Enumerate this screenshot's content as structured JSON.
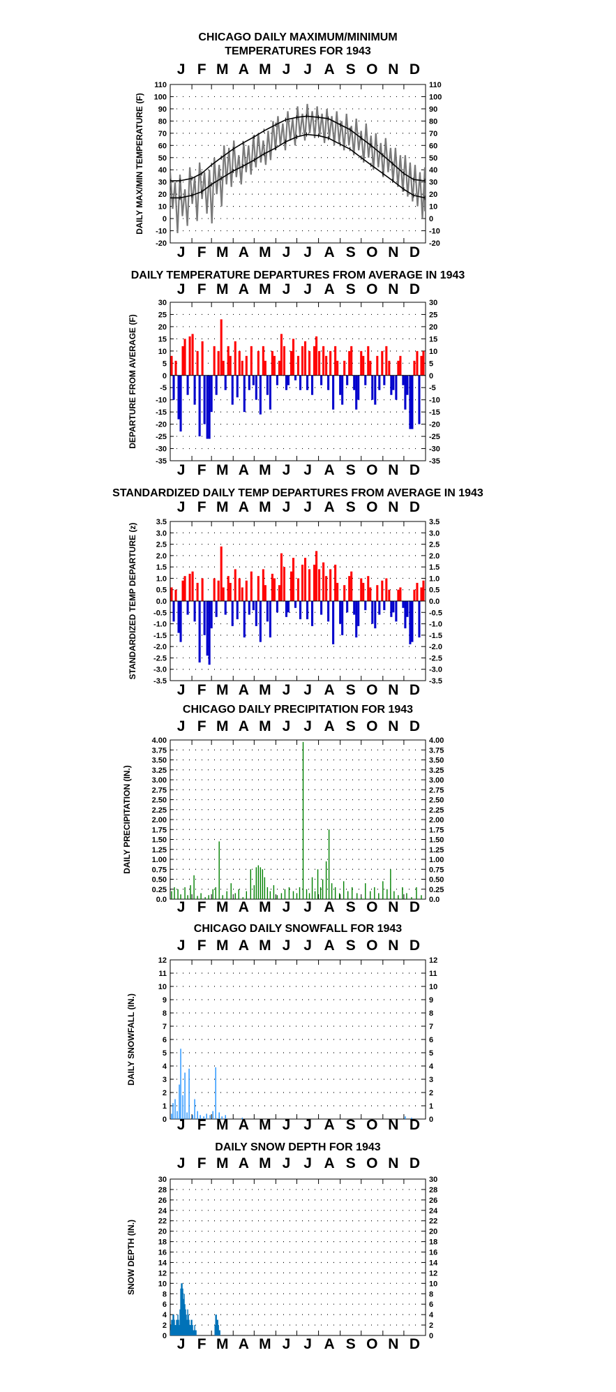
{
  "chart_data": [
    {
      "type": "line",
      "title": "CHICAGO DAILY MAXIMUM/MINIMUM TEMPERATURES FOR 1943",
      "title_lines": [
        "CHICAGO DAILY MAXIMUM/MINIMUM",
        "TEMPERATURES FOR 1943"
      ],
      "ylabel": "DAILY MAX/MIN TEMPERATURE (F)",
      "xlabel": "",
      "month_labels": [
        "J",
        "F",
        "M",
        "A",
        "M",
        "J",
        "J",
        "A",
        "S",
        "O",
        "N",
        "D"
      ],
      "ylim": [
        -20,
        110
      ],
      "yticks": [
        110,
        100,
        90,
        80,
        70,
        60,
        50,
        40,
        30,
        20,
        10,
        0,
        -10,
        -20
      ],
      "grid": true,
      "x_unit": "day of year (1 = Jan 1)",
      "colors": {
        "observed": "#7a7a7a",
        "normal": "#000000"
      },
      "series": [
        {
          "values": {
            "kind": "normal_max",
            "x": [
              1,
              15,
              32,
              46,
              60,
              74,
              91,
              105,
              121,
              135,
              152,
              166,
              182,
              196,
              213,
              227,
              244,
              258,
              274,
              288,
              305,
              319,
              335,
              349,
              365
            ],
            "y": [
              31,
              31,
              33,
              37,
              44,
              50,
              57,
              62,
              67,
              72,
              77,
              81,
              83,
              84,
              83,
              82,
              77,
              73,
              66,
              60,
              52,
              45,
              37,
              32,
              31
            ]
          }
        },
        {
          "values": {
            "kind": "normal_min",
            "x": [
              1,
              15,
              32,
              46,
              60,
              74,
              91,
              105,
              121,
              135,
              152,
              166,
              182,
              196,
              213,
              227,
              244,
              258,
              274,
              288,
              305,
              319,
              335,
              349,
              365
            ],
            "y": [
              17,
              17,
              19,
              22,
              28,
              33,
              39,
              43,
              48,
              53,
              58,
              63,
              67,
              69,
              68,
              66,
              61,
              57,
              50,
              44,
              37,
              31,
              24,
              19,
              17
            ]
          }
        },
        {
          "values": {
            "kind": "observed_envelope",
            "x": [
              1,
              8,
              15,
              22,
              29,
              36,
              43,
              50,
              57,
              64,
              71,
              78,
              85,
              92,
              99,
              106,
              113,
              120,
              127,
              134,
              141,
              148,
              155,
              162,
              169,
              176,
              183,
              190,
              197,
              204,
              211,
              218,
              225,
              232,
              239,
              246,
              253,
              260,
              267,
              274,
              281,
              288,
              295,
              302,
              309,
              316,
              323,
              330,
              337,
              344,
              351,
              358,
              365
            ],
            "high": [
              38,
              30,
              36,
              24,
              42,
              34,
              46,
              38,
              40,
              50,
              44,
              60,
              58,
              64,
              52,
              62,
              60,
              68,
              70,
              64,
              72,
              80,
              84,
              78,
              88,
              82,
              92,
              86,
              94,
              88,
              92,
              86,
              90,
              84,
              88,
              80,
              86,
              76,
              82,
              72,
              78,
              68,
              70,
              62,
              66,
              58,
              58,
              52,
              52,
              46,
              44,
              38,
              42
            ],
            "low": [
              8,
              -12,
              2,
              -6,
              12,
              -2,
              16,
              4,
              -4,
              20,
              10,
              28,
              26,
              34,
              28,
              38,
              36,
              42,
              46,
              44,
              48,
              56,
              60,
              56,
              64,
              60,
              68,
              64,
              70,
              66,
              68,
              62,
              66,
              60,
              62,
              56,
              60,
              52,
              56,
              46,
              50,
              40,
              42,
              34,
              38,
              30,
              26,
              22,
              18,
              14,
              10,
              0,
              6
            ]
          }
        }
      ]
    },
    {
      "type": "bar",
      "title": "DAILY TEMPERATURE DEPARTURES FROM AVERAGE IN 1943",
      "ylabel": "DEPARTURE FROM AVERAGE (F)",
      "xlabel": "",
      "month_labels": [
        "J",
        "F",
        "M",
        "A",
        "M",
        "J",
        "J",
        "A",
        "S",
        "O",
        "N",
        "D"
      ],
      "ylim": [
        -35,
        30
      ],
      "yticks": [
        30,
        25,
        20,
        15,
        10,
        5,
        0,
        -5,
        -10,
        -15,
        -20,
        -25,
        -30,
        -35
      ],
      "grid": true,
      "colors": {
        "positive": "#ff0000",
        "negative": "#0000cc"
      },
      "x_unit": "day of year",
      "x": [
        3,
        6,
        9,
        13,
        16,
        19,
        22,
        26,
        29,
        33,
        36,
        40,
        43,
        47,
        50,
        54,
        57,
        60,
        64,
        67,
        70,
        74,
        77,
        80,
        84,
        87,
        90,
        94,
        97,
        100,
        104,
        107,
        110,
        114,
        117,
        120,
        124,
        127,
        130,
        134,
        137,
        140,
        144,
        147,
        150,
        154,
        157,
        160,
        164,
        167,
        170,
        174,
        177,
        180,
        184,
        187,
        190,
        194,
        197,
        200,
        204,
        207,
        210,
        214,
        217,
        220,
        224,
        227,
        230,
        234,
        237,
        240,
        244,
        247,
        250,
        254,
        257,
        260,
        264,
        267,
        270,
        274,
        277,
        280,
        284,
        287,
        290,
        294,
        297,
        300,
        304,
        307,
        310,
        314,
        317,
        320,
        324,
        327,
        330,
        334,
        337,
        340,
        344,
        347,
        350,
        354,
        357,
        360,
        363
      ],
      "y": [
        8,
        -10,
        6,
        -18,
        -23,
        12,
        15,
        -8,
        16,
        17,
        -12,
        10,
        -25,
        14,
        -20,
        -26,
        -26,
        -15,
        12,
        -8,
        10,
        23,
        6,
        -6,
        12,
        8,
        -12,
        14,
        -9,
        10,
        6,
        -15,
        8,
        -6,
        12,
        -4,
        -10,
        10,
        -16,
        12,
        6,
        -8,
        -14,
        10,
        8,
        -4,
        6,
        17,
        12,
        -6,
        -4,
        10,
        15,
        -2,
        8,
        -6,
        12,
        14,
        -6,
        10,
        -8,
        12,
        16,
        10,
        -4,
        12,
        8,
        -6,
        10,
        -14,
        12,
        6,
        -8,
        -12,
        6,
        -4,
        10,
        12,
        -6,
        -14,
        -10,
        10,
        8,
        -4,
        12,
        6,
        -10,
        -12,
        8,
        -6,
        10,
        -4,
        12,
        6,
        -8,
        -6,
        -10,
        6,
        8,
        -4,
        -14,
        -8,
        -22,
        -22,
        6,
        10,
        -20,
        8,
        10
      ]
    },
    {
      "type": "bar",
      "title": "STANDARDIZED DAILY TEMP DEPARTURES FROM AVERAGE IN 1943",
      "ylabel": "STANDARDIZED TEMP DEPARTURE (z)",
      "xlabel": "",
      "month_labels": [
        "J",
        "F",
        "M",
        "A",
        "M",
        "J",
        "J",
        "A",
        "S",
        "O",
        "N",
        "D"
      ],
      "ylim": [
        -3.5,
        3.5
      ],
      "yticks": [
        "3.5",
        "3.0",
        "2.5",
        "2.0",
        "1.5",
        "1.0",
        "0.5",
        "0.0",
        "-0.5",
        "-1.0",
        "-1.5",
        "-2.0",
        "-2.5",
        "-3.0",
        "-3.5"
      ],
      "grid": true,
      "colors": {
        "positive": "#ff0000",
        "negative": "#0000cc"
      },
      "x_unit": "day of year",
      "x": [
        3,
        6,
        9,
        13,
        16,
        19,
        22,
        26,
        29,
        33,
        36,
        40,
        43,
        47,
        50,
        54,
        57,
        60,
        64,
        67,
        70,
        74,
        77,
        80,
        84,
        87,
        90,
        94,
        97,
        100,
        104,
        107,
        110,
        114,
        117,
        120,
        124,
        127,
        130,
        134,
        137,
        140,
        144,
        147,
        150,
        154,
        157,
        160,
        164,
        167,
        170,
        174,
        177,
        180,
        184,
        187,
        190,
        194,
        197,
        200,
        204,
        207,
        210,
        214,
        217,
        220,
        224,
        227,
        230,
        234,
        237,
        240,
        244,
        247,
        250,
        254,
        257,
        260,
        264,
        267,
        270,
        274,
        277,
        280,
        284,
        287,
        290,
        294,
        297,
        300,
        304,
        307,
        310,
        314,
        317,
        320,
        324,
        327,
        330,
        334,
        337,
        340,
        344,
        347,
        350,
        354,
        357,
        360,
        363
      ],
      "y": [
        0.6,
        -0.9,
        0.5,
        -1.4,
        -1.8,
        0.9,
        1.1,
        -0.6,
        1.2,
        1.3,
        -0.9,
        0.8,
        -2.7,
        1.0,
        -1.5,
        -2.4,
        -2.8,
        -1.2,
        1.0,
        -0.7,
        0.9,
        2.4,
        0.6,
        -0.6,
        1.1,
        0.8,
        -1.1,
        1.4,
        -0.8,
        1.0,
        0.6,
        -1.6,
        0.9,
        -0.6,
        1.3,
        -0.4,
        -1.1,
        1.1,
        -1.8,
        1.4,
        0.7,
        -0.9,
        -1.6,
        1.2,
        1.0,
        -0.5,
        0.7,
        2.1,
        1.5,
        -0.7,
        -0.5,
        1.3,
        1.9,
        -0.3,
        1.0,
        -0.8,
        1.6,
        1.9,
        -0.8,
        1.4,
        -1.1,
        1.6,
        2.2,
        1.4,
        -0.6,
        1.7,
        1.1,
        -0.9,
        1.4,
        -1.9,
        1.6,
        0.8,
        -1.0,
        -1.5,
        0.7,
        -0.5,
        1.1,
        1.3,
        -0.6,
        -1.6,
        -1.1,
        1.0,
        0.8,
        -0.4,
        1.1,
        0.6,
        -1.0,
        -1.2,
        0.7,
        -0.6,
        0.9,
        -0.4,
        1.0,
        0.5,
        -0.7,
        -0.5,
        -0.9,
        0.5,
        0.6,
        -0.3,
        -1.2,
        -0.7,
        -1.9,
        -1.8,
        0.5,
        0.8,
        -1.6,
        0.6,
        0.9
      ]
    },
    {
      "type": "bar",
      "title": "CHICAGO DAILY PRECIPITATION FOR 1943",
      "ylabel": "DAILY PRECIPITATION (IN.)",
      "xlabel": "",
      "month_labels": [
        "J",
        "F",
        "M",
        "A",
        "M",
        "J",
        "J",
        "A",
        "S",
        "O",
        "N",
        "D"
      ],
      "ylim": [
        0,
        4
      ],
      "yticks": [
        "4.00",
        "3.75",
        "3.50",
        "3.25",
        "3.00",
        "2.75",
        "2.50",
        "2.25",
        "2.00",
        "1.75",
        "1.50",
        "1.25",
        "1.00",
        "0.75",
        "0.50",
        "0.25",
        "0.0"
      ],
      "grid": true,
      "colors": {
        "bar": "#008000"
      },
      "x_unit": "day of year",
      "x": [
        3,
        7,
        12,
        16,
        22,
        26,
        30,
        35,
        40,
        45,
        51,
        56,
        62,
        66,
        71,
        76,
        82,
        88,
        94,
        99,
        105,
        110,
        116,
        121,
        124,
        127,
        130,
        133,
        136,
        140,
        144,
        149,
        154,
        160,
        165,
        171,
        177,
        182,
        186,
        191,
        196,
        200,
        204,
        208,
        212,
        216,
        219,
        224,
        228,
        232,
        237,
        243,
        249,
        255,
        261,
        268,
        274,
        280,
        287,
        293,
        299,
        305,
        311,
        316,
        321,
        327,
        333,
        339,
        346,
        353,
        360
      ],
      "y": [
        0.2,
        0.3,
        0.25,
        0.12,
        0.3,
        0.1,
        0.35,
        0.6,
        0.08,
        0.15,
        0.05,
        0.1,
        0.25,
        0.3,
        1.45,
        0.1,
        0.2,
        0.4,
        0.15,
        0.25,
        0.05,
        0.2,
        0.75,
        0.35,
        0.8,
        0.85,
        0.8,
        0.75,
        0.55,
        0.3,
        0.2,
        0.35,
        0.1,
        0.15,
        0.25,
        0.3,
        0.2,
        0.15,
        0.3,
        3.95,
        0.25,
        0.15,
        0.55,
        0.2,
        0.75,
        0.3,
        0.5,
        0.95,
        1.75,
        0.4,
        0.3,
        0.15,
        0.45,
        0.2,
        0.3,
        0.15,
        0.05,
        0.4,
        0.2,
        0.3,
        0.15,
        0.45,
        0.25,
        0.75,
        0.2,
        0.1,
        0.3,
        0.15,
        0.05,
        0.3,
        0.1
      ]
    },
    {
      "type": "bar",
      "title": "CHICAGO DAILY SNOWFALL FOR 1943",
      "ylabel": "DAILY SNOWFALL (IN.)",
      "xlabel": "",
      "month_labels": [
        "J",
        "F",
        "M",
        "A",
        "M",
        "J",
        "J",
        "A",
        "S",
        "O",
        "N",
        "D"
      ],
      "ylim": [
        0,
        12
      ],
      "yticks": [
        12,
        11,
        10,
        9,
        8,
        7,
        6,
        5,
        4,
        3,
        2,
        1,
        0
      ],
      "grid": true,
      "colors": {
        "bar": "#1e90ff"
      },
      "x_unit": "day of year",
      "x": [
        3,
        5,
        8,
        11,
        14,
        16,
        19,
        22,
        25,
        28,
        33,
        36,
        40,
        44,
        49,
        53,
        58,
        62,
        66,
        71,
        75,
        80,
        104,
        337,
        346
      ],
      "y": [
        0.4,
        1.2,
        1.5,
        0.6,
        2.6,
        5.3,
        1.8,
        3.5,
        0.5,
        3.8,
        0.3,
        1.5,
        0.6,
        0.3,
        0.2,
        0.4,
        0.3,
        0.6,
        3.9,
        0.5,
        0.2,
        0.3,
        0.1,
        0.2,
        0.1
      ]
    },
    {
      "type": "bar",
      "title": "DAILY SNOW DEPTH FOR 1943",
      "ylabel": "SNOW DEPTH (IN.)",
      "xlabel": "",
      "month_labels": [
        "J",
        "F",
        "M",
        "A",
        "M",
        "J",
        "J",
        "A",
        "S",
        "O",
        "N",
        "D"
      ],
      "ylim": [
        0,
        30
      ],
      "yticks": [
        30,
        28,
        26,
        24,
        22,
        20,
        18,
        16,
        14,
        12,
        10,
        8,
        6,
        4,
        2,
        0
      ],
      "grid": true,
      "colors": {
        "bar": "#0072b8"
      },
      "x_unit": "day of year",
      "x": [
        1,
        2,
        3,
        4,
        5,
        6,
        7,
        8,
        9,
        10,
        11,
        12,
        13,
        14,
        15,
        16,
        17,
        18,
        19,
        20,
        21,
        22,
        23,
        24,
        25,
        26,
        27,
        28,
        29,
        30,
        31,
        32,
        33,
        34,
        35,
        36,
        37,
        38,
        39,
        40,
        41,
        42,
        43,
        44,
        45,
        46,
        47,
        48,
        49,
        50,
        51,
        52,
        53,
        54,
        55,
        56,
        57,
        58,
        59,
        60,
        61,
        62,
        63,
        64,
        65,
        66,
        67,
        68,
        69,
        70,
        71,
        72,
        73,
        74,
        75,
        76
      ],
      "y": [
        1,
        2,
        3,
        3,
        4,
        4,
        3,
        2,
        2,
        3,
        3,
        4,
        3,
        2,
        5,
        9,
        10,
        10,
        9,
        7,
        8,
        6,
        5,
        4,
        3,
        5,
        4,
        3,
        2,
        2,
        3,
        3,
        2,
        1,
        1,
        2,
        1,
        1,
        0,
        0,
        0,
        0,
        0,
        0,
        0,
        0,
        0,
        0,
        0,
        0,
        0,
        0,
        0,
        0,
        0,
        0,
        0,
        0,
        0,
        0,
        0,
        0,
        0,
        0,
        2,
        4,
        4,
        3,
        3,
        2,
        1,
        1,
        0,
        0,
        0,
        0
      ]
    }
  ]
}
